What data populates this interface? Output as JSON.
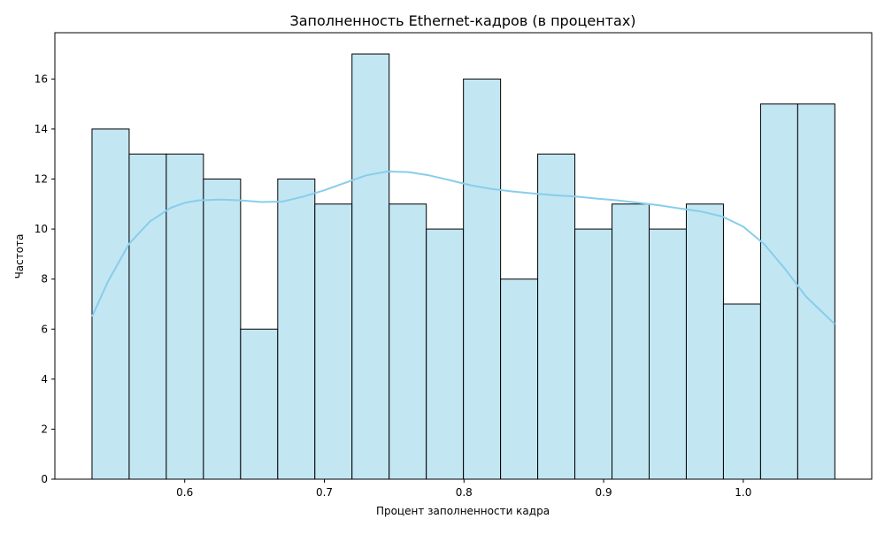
{
  "chart_data": {
    "type": "bar",
    "title": "Заполненность Ethernet-кадров (в процентах)",
    "xlabel": "Процент заполненности кадра",
    "ylabel": "Частота",
    "bin_edges": [
      0.5336,
      0.5602,
      0.5868,
      0.6134,
      0.64,
      0.6666,
      0.6932,
      0.7198,
      0.7464,
      0.773,
      0.7996,
      0.8262,
      0.8528,
      0.8794,
      0.906,
      0.9326,
      0.9592,
      0.9858,
      1.0124,
      1.039,
      1.0656
    ],
    "values": [
      14,
      13,
      13,
      12,
      6,
      12,
      11,
      17,
      11,
      10,
      16,
      8,
      13,
      10,
      11,
      10,
      11,
      7,
      15,
      15
    ],
    "kde": {
      "x": [
        0.5336,
        0.545,
        0.56,
        0.575,
        0.59,
        0.6,
        0.61,
        0.625,
        0.64,
        0.655,
        0.67,
        0.685,
        0.7,
        0.715,
        0.73,
        0.745,
        0.76,
        0.775,
        0.79,
        0.805,
        0.82,
        0.835,
        0.85,
        0.865,
        0.88,
        0.895,
        0.91,
        0.925,
        0.94,
        0.955,
        0.97,
        0.985,
        1.0,
        1.015,
        1.03,
        1.045,
        1.0656
      ],
      "y": [
        6.5,
        7.9,
        9.4,
        10.3,
        10.85,
        11.05,
        11.15,
        11.18,
        11.15,
        11.08,
        11.1,
        11.3,
        11.55,
        11.85,
        12.15,
        12.3,
        12.28,
        12.15,
        11.95,
        11.75,
        11.6,
        11.5,
        11.42,
        11.35,
        11.3,
        11.22,
        11.15,
        11.05,
        10.95,
        10.82,
        10.7,
        10.5,
        10.1,
        9.4,
        8.4,
        7.3,
        6.2
      ]
    },
    "xlim": [
      0.507,
      1.092
    ],
    "ylim": [
      0,
      17.85
    ],
    "xticks": [
      0.6,
      0.7,
      0.8,
      0.9,
      1.0
    ],
    "xtick_labels": [
      "0.6",
      "0.7",
      "0.8",
      "0.9",
      "1.0"
    ],
    "yticks": [
      0,
      2,
      4,
      6,
      8,
      10,
      12,
      14,
      16
    ],
    "ytick_labels": [
      "0",
      "2",
      "4",
      "6",
      "8",
      "10",
      "12",
      "14",
      "16"
    ],
    "grid": false,
    "colors": {
      "bar_fill": "#c3e6f3",
      "bar_edge": "#000000",
      "kde_line": "#87ceeb",
      "axis": "#000000"
    }
  }
}
